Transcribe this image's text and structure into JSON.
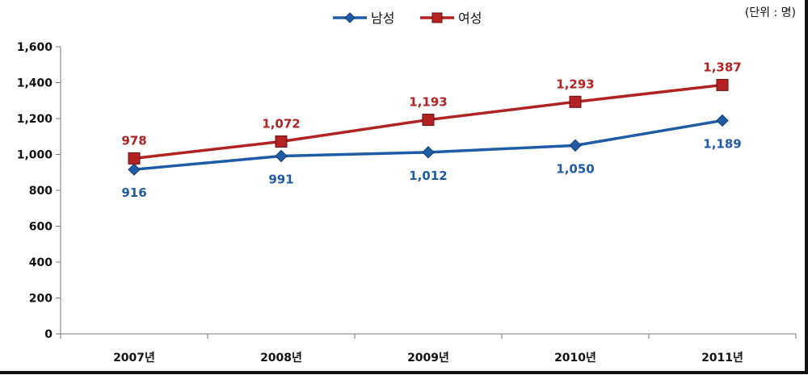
{
  "chart_data": {
    "type": "line",
    "unit_note": "(단위 : 명)",
    "categories": [
      "2007년",
      "2008년",
      "2009년",
      "2010년",
      "2011년"
    ],
    "series": [
      {
        "name": "남성",
        "values": [
          916,
          991,
          1012,
          1050,
          1189
        ],
        "labels": [
          "916",
          "991",
          "1,012",
          "1,050",
          "1,189"
        ],
        "color": "#1f5ba6",
        "marker": "diamond"
      },
      {
        "name": "여성",
        "values": [
          978,
          1072,
          1193,
          1293,
          1387
        ],
        "labels": [
          "978",
          "1,072",
          "1,193",
          "1,293",
          "1,387"
        ],
        "color": "#b22222",
        "marker": "square"
      }
    ],
    "ylim": [
      0,
      1600
    ],
    "yticks": [
      0,
      200,
      400,
      600,
      800,
      1000,
      1200,
      1400,
      1600
    ],
    "ytick_labels": [
      "0",
      "200",
      "400",
      "600",
      "800",
      "1,000",
      "1,200",
      "1,400",
      "1,600"
    ],
    "grid": false,
    "legend_position": "top-center"
  }
}
